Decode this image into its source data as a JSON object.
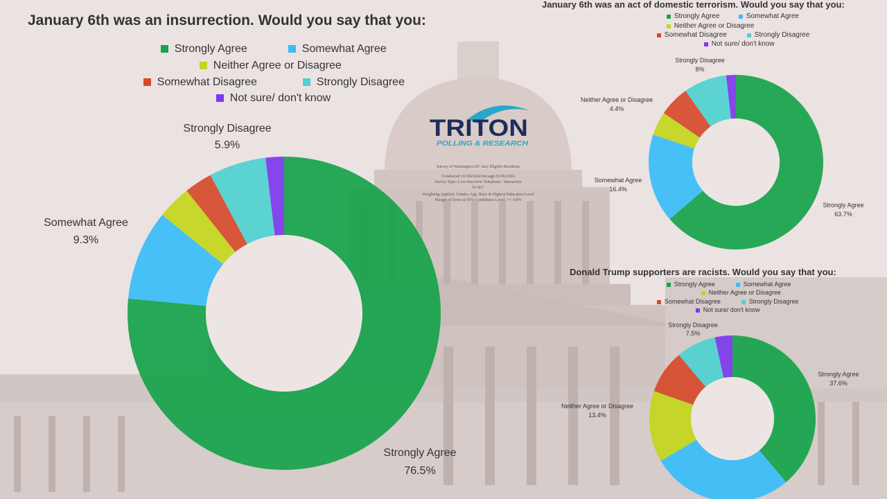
{
  "colors": {
    "strongly_agree": "#16a34a",
    "somewhat_agree": "#38bdf8",
    "neither": "#c4d61b",
    "somewhat_disagree": "#d64a2a",
    "strongly_disagree": "#4ed1d1",
    "not_sure": "#7c3aed"
  },
  "logo": {
    "name": "TRITON",
    "tagline": "POLLING & RESEARCH",
    "methodology": [
      "Survey of Washington DC Jury Eligible Residents",
      "Conducted: 01/04/2024 through 01/06/2024",
      "Survey Type: Live Interview Telephone / Interactive",
      "N=427",
      "Weighting Applied: Gender, Age, Race & Highest Education Level",
      "Margin of Error at 95% Confidence Level: +/- 4.8%"
    ]
  },
  "chart_data": [
    {
      "type": "pie",
      "title": "January 6th was an insurrection. Would you say that you:",
      "legend": [
        "Strongly Agree",
        "Somewhat Agree",
        "Neither Agree or Disagree",
        "Somewhat Disagree",
        "Strongly Disagree",
        "Not sure/ don't know"
      ],
      "categories": [
        "Strongly Agree",
        "Somewhat Agree",
        "Neither Agree or Disagree",
        "Somewhat Disagree",
        "Strongly Disagree",
        "Not sure/ don't know"
      ],
      "values": [
        76.5,
        9.3,
        3.5,
        2.9,
        5.9,
        1.9
      ],
      "data_labels": [
        {
          "category": "Strongly Agree",
          "text": "76.5%"
        },
        {
          "category": "Somewhat Agree",
          "text": "9.3%"
        },
        {
          "category": "Strongly Disagree",
          "text": "5.9%"
        }
      ]
    },
    {
      "type": "pie",
      "title": "January 6th was an act of domestic terrorism. Would you say that you:",
      "legend": [
        "Strongly Agree",
        "Somewhat Agree",
        "Neither Agree or Disagree",
        "Somewhat Disagree",
        "Strongly Disagree",
        "Not sure/ don't know"
      ],
      "categories": [
        "Strongly Agree",
        "Somewhat Agree",
        "Neither Agree or Disagree",
        "Somewhat Disagree",
        "Strongly Disagree",
        "Not sure/ don't know"
      ],
      "values": [
        63.7,
        16.4,
        4.4,
        5.7,
        8.0,
        1.8
      ],
      "data_labels": [
        {
          "category": "Strongly Agree",
          "text": "63.7%"
        },
        {
          "category": "Somewhat Agree",
          "text": "16.4%"
        },
        {
          "category": "Neither Agree or Disagree",
          "text": "4.4%"
        },
        {
          "category": "Strongly Disagree",
          "text": "8%"
        }
      ]
    },
    {
      "type": "pie",
      "title": "Donald Trump supporters are racists. Would you say that you:",
      "legend": [
        "Strongly Agree",
        "Somewhat Agree",
        "Neither Agree or Disagree",
        "Somewhat Disagree",
        "Strongly Disagree",
        "Not sure/ don't know"
      ],
      "categories": [
        "Strongly Agree",
        "Somewhat Agree",
        "Neither Agree or Disagree",
        "Somewhat Disagree",
        "Strongly Disagree",
        "Not sure/ don't know"
      ],
      "values": [
        37.6,
        26.8,
        13.4,
        8.2,
        7.5,
        3.3
      ],
      "data_labels": [
        {
          "category": "Strongly Agree",
          "text": "37.6%"
        },
        {
          "category": "Neither Agree or Disagree",
          "text": "13.4%"
        },
        {
          "category": "Strongly Disagree",
          "text": "7.5%"
        }
      ]
    }
  ]
}
